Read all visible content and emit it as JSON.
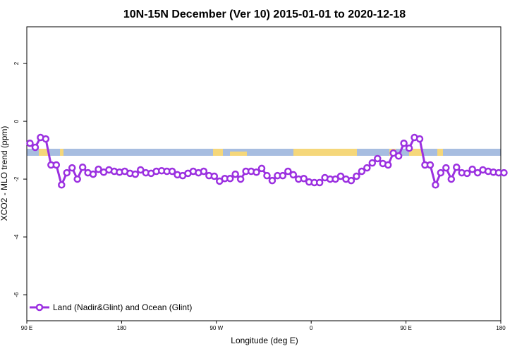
{
  "chart_data": {
    "type": "line",
    "title": "10N-15N December (Ver 10)   2015-01-01 to 2020-12-18",
    "x_label": "Longitude (deg E)",
    "y_label": "XCO2 - MLO trend (ppm)",
    "xlim": [
      90,
      540
    ],
    "ylim": [
      -6.9,
      3.27
    ],
    "xticks": [
      {
        "value": 90,
        "label": "90 E"
      },
      180,
      {
        "value": 270,
        "label": "90 W"
      },
      {
        "value": 360,
        "label": "0"
      },
      {
        "value": 450,
        "label": "90 E"
      },
      {
        "value": 540,
        "label": "180"
      }
    ],
    "yticks": [
      -6,
      -4,
      -2,
      0,
      2
    ],
    "legend_position": "bottom-left",
    "x": [
      93,
      98,
      103,
      108,
      113,
      118,
      123,
      128,
      133,
      138,
      143,
      148,
      153,
      158,
      163,
      168,
      173,
      178,
      183,
      188,
      193,
      198,
      203,
      208,
      213,
      218,
      223,
      228,
      233,
      238,
      243,
      248,
      253,
      258,
      263,
      268,
      273,
      278,
      283,
      288,
      293,
      298,
      303,
      308,
      313,
      318,
      323,
      328,
      333,
      338,
      343,
      348,
      353,
      358,
      363,
      368,
      373,
      378,
      383,
      388,
      393,
      398,
      403,
      408,
      413,
      418,
      423,
      428,
      433,
      438,
      443,
      448,
      453,
      458,
      463,
      468,
      473,
      478,
      483,
      488,
      493,
      498,
      503,
      508,
      513,
      518,
      523,
      528,
      533,
      538,
      543
    ],
    "series": [
      {
        "name": "Land (Nadir&Glint) and Ocean (Glint)",
        "color": "#9b30e0",
        "values": [
          -0.76,
          -0.9,
          -0.56,
          -0.61,
          -1.51,
          -1.51,
          -2.2,
          -1.78,
          -1.61,
          -2.0,
          -1.59,
          -1.78,
          -1.83,
          -1.66,
          -1.76,
          -1.68,
          -1.73,
          -1.76,
          -1.73,
          -1.8,
          -1.83,
          -1.68,
          -1.78,
          -1.8,
          -1.73,
          -1.71,
          -1.73,
          -1.73,
          -1.85,
          -1.88,
          -1.8,
          -1.73,
          -1.78,
          -1.73,
          -1.88,
          -1.9,
          -2.07,
          -1.98,
          -1.98,
          -1.83,
          -2.0,
          -1.73,
          -1.73,
          -1.76,
          -1.63,
          -1.88,
          -2.05,
          -1.88,
          -1.88,
          -1.73,
          -1.85,
          -2.0,
          -1.98,
          -2.1,
          -2.12,
          -2.12,
          -1.95,
          -2.0,
          -2.0,
          -1.9,
          -2.0,
          -2.05,
          -1.9,
          -1.73,
          -1.61,
          -1.44,
          -1.29,
          -1.46,
          -1.51,
          -1.1,
          -1.2,
          -0.76,
          -0.93,
          -0.56,
          -0.61,
          -1.51,
          -1.51,
          -2.2,
          -1.78,
          -1.61,
          -2.0,
          -1.59,
          -1.78,
          -1.8,
          -1.66,
          -1.78,
          -1.68,
          -1.73,
          -1.76,
          -1.78,
          -1.78
        ]
      }
    ]
  }
}
